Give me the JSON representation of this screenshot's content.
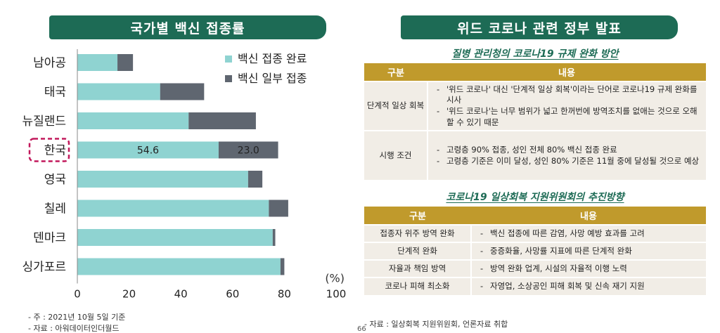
{
  "left_banner": "국가별 백신 접종률",
  "right_banner": "위드 코로나 관련 정부 발표",
  "chart_data": {
    "type": "bar",
    "orientation": "horizontal",
    "stacked": true,
    "categories": [
      "남아공",
      "태국",
      "뉴질랜드",
      "한국",
      "영국",
      "칠레",
      "덴마크",
      "싱가포르"
    ],
    "series": [
      {
        "name": "백신 접종 완료",
        "color": "#8fd3d1",
        "values": [
          15.5,
          32,
          43,
          54.6,
          66,
          74,
          75.5,
          78.5
        ]
      },
      {
        "name": "백신 일부 접종",
        "color": "#5f6670",
        "values": [
          6,
          17,
          26,
          23.0,
          5.5,
          7.5,
          1,
          1.5
        ]
      }
    ],
    "highlight_category": "한국",
    "data_labels": {
      "category": "한국",
      "values": [
        "54.6",
        "23.0"
      ]
    },
    "xlim": [
      0,
      100
    ],
    "xticks": [
      "0",
      "20",
      "40",
      "60",
      "80",
      "100"
    ],
    "unit": "(%)",
    "legend_position": "top-right"
  },
  "footnotes": {
    "note1": "- 주 : 2021년 10월 5일 기준",
    "note2": "- 자료 : 아워데이터인더월드"
  },
  "section1": {
    "title": "질병 관리청의 코로나19 규제 완화 방안",
    "header": [
      "구분",
      "내용"
    ],
    "rows": [
      {
        "category": "단계적 일상 회복",
        "items": [
          "'위드 코로나' 대신 '단계적 일상 회복'이라는 단어로 코로나19 규제 완화를 시사",
          "'위드 코로나'는 너무 범위가 넓고 한꺼번에 방역조치를 없애는 것으로 오해할 수 있기 때문"
        ]
      },
      {
        "category": "시행 조건",
        "items": [
          "고령층 90% 접종, 성인 전체 80% 백신 접종 완료",
          "고령층 기준은 이미 달성, 성인 80% 기준은 11월 중에 달성될 것으로 예상"
        ]
      }
    ]
  },
  "section2": {
    "title": "코로나19 일상회복 지원위원회의 추진방향",
    "header": [
      "구분",
      "내용"
    ],
    "rows": [
      {
        "category": "접종자 위주 방역 완화",
        "content": "백신 접종에 따른 감염, 사망 예방 효과를 고려"
      },
      {
        "category": "단계적 완화",
        "content": "중증화율, 사망률 지표에 따른 단계적 완화"
      },
      {
        "category": "자율과 책임 방역",
        "content": "방역 완화 업계, 시설의 자율적 이행 노력"
      },
      {
        "category": "코로나 피해 최소화",
        "content": "자영업, 소상공인 피해 회복 및 신속 재기 지원"
      }
    ]
  },
  "source_right": "- 자료 : 일상회복 지원위원회, 언론자료 취합",
  "page_number": "66"
}
